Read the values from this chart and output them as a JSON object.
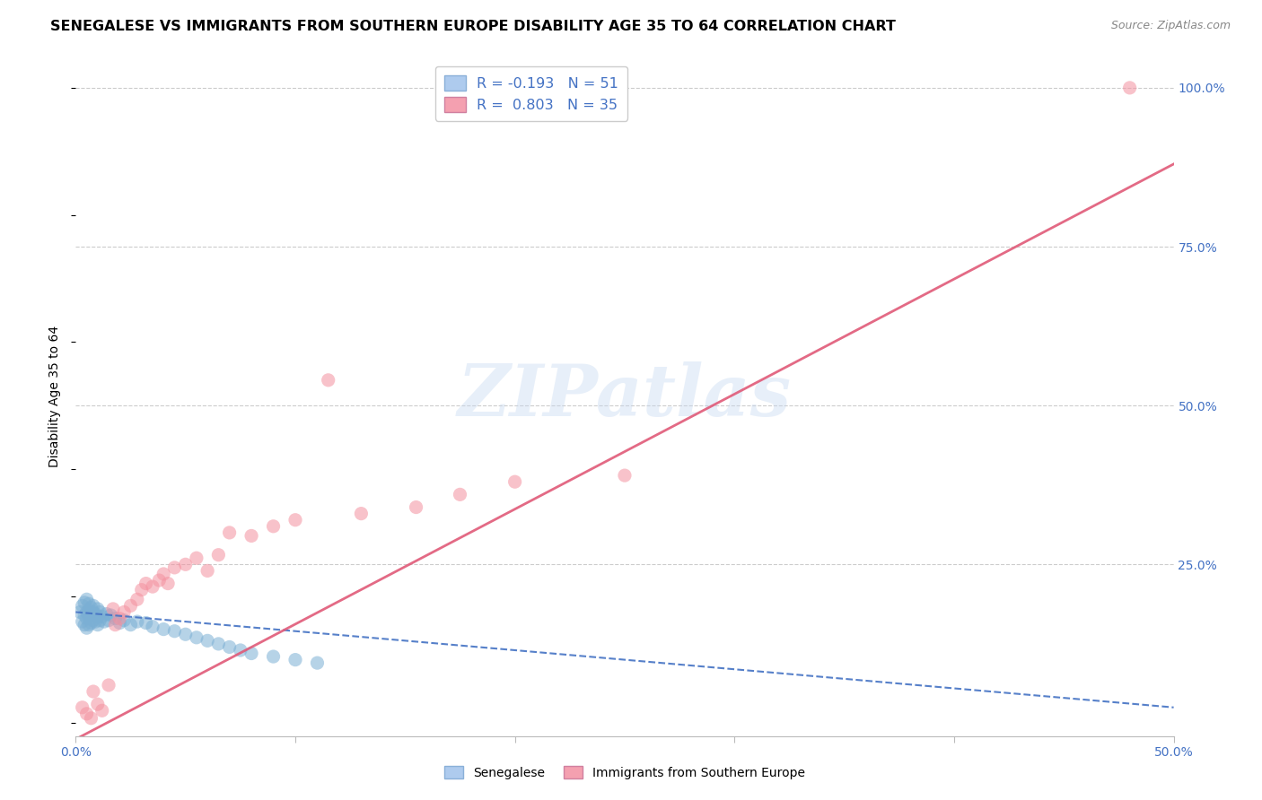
{
  "title": "SENEGALESE VS IMMIGRANTS FROM SOUTHERN EUROPE DISABILITY AGE 35 TO 64 CORRELATION CHART",
  "source": "Source: ZipAtlas.com",
  "ylabel": "Disability Age 35 to 64",
  "x_min": 0.0,
  "x_max": 0.5,
  "y_min": -0.02,
  "y_max": 1.05,
  "watermark": "ZIPatlas",
  "blue_color": "#7bafd4",
  "pink_color": "#f4919f",
  "blue_line_color": "#4472c4",
  "pink_line_color": "#e05a78",
  "blue_x": [
    0.002,
    0.003,
    0.003,
    0.004,
    0.004,
    0.004,
    0.005,
    0.005,
    0.005,
    0.005,
    0.006,
    0.006,
    0.006,
    0.006,
    0.007,
    0.007,
    0.007,
    0.008,
    0.008,
    0.008,
    0.009,
    0.009,
    0.01,
    0.01,
    0.01,
    0.011,
    0.011,
    0.012,
    0.013,
    0.014,
    0.015,
    0.016,
    0.018,
    0.02,
    0.022,
    0.025,
    0.028,
    0.032,
    0.035,
    0.04,
    0.045,
    0.05,
    0.055,
    0.06,
    0.065,
    0.07,
    0.075,
    0.08,
    0.09,
    0.1,
    0.11
  ],
  "blue_y": [
    0.175,
    0.16,
    0.185,
    0.155,
    0.17,
    0.19,
    0.15,
    0.165,
    0.175,
    0.195,
    0.155,
    0.168,
    0.178,
    0.188,
    0.158,
    0.17,
    0.182,
    0.162,
    0.175,
    0.185,
    0.16,
    0.172,
    0.155,
    0.168,
    0.18,
    0.162,
    0.175,
    0.168,
    0.16,
    0.172,
    0.162,
    0.17,
    0.165,
    0.158,
    0.162,
    0.155,
    0.16,
    0.158,
    0.152,
    0.148,
    0.145,
    0.14,
    0.135,
    0.13,
    0.125,
    0.12,
    0.115,
    0.11,
    0.105,
    0.1,
    0.095
  ],
  "pink_x": [
    0.003,
    0.005,
    0.007,
    0.008,
    0.01,
    0.012,
    0.015,
    0.017,
    0.018,
    0.02,
    0.022,
    0.025,
    0.028,
    0.03,
    0.032,
    0.035,
    0.038,
    0.04,
    0.042,
    0.045,
    0.05,
    0.055,
    0.06,
    0.065,
    0.07,
    0.08,
    0.09,
    0.1,
    0.115,
    0.13,
    0.155,
    0.175,
    0.2,
    0.25,
    0.48
  ],
  "pink_y": [
    0.025,
    0.015,
    0.008,
    0.05,
    0.03,
    0.02,
    0.06,
    0.18,
    0.155,
    0.165,
    0.175,
    0.185,
    0.195,
    0.21,
    0.22,
    0.215,
    0.225,
    0.235,
    0.22,
    0.245,
    0.25,
    0.26,
    0.24,
    0.265,
    0.3,
    0.295,
    0.31,
    0.32,
    0.54,
    0.33,
    0.34,
    0.36,
    0.38,
    0.39,
    1.0
  ],
  "blue_trend_x": [
    0.0,
    0.5
  ],
  "blue_trend_y": [
    0.175,
    0.025
  ],
  "pink_trend_x": [
    0.0,
    0.5
  ],
  "pink_trend_y": [
    -0.025,
    0.88
  ],
  "background_color": "#ffffff",
  "grid_color": "#cccccc",
  "title_fontsize": 11.5,
  "axis_label_fontsize": 10,
  "tick_label_fontsize": 10,
  "tick_color": "#4472c4",
  "source_fontsize": 9,
  "legend_r1": "R = -0.193",
  "legend_n1": "N = 51",
  "legend_r2": "R =  0.803",
  "legend_n2": "N = 35",
  "legend_color1": "#aecbee",
  "legend_color2": "#f4a0b0",
  "bottom_legend_senegalese": "Senegalese",
  "bottom_legend_immigrants": "Immigrants from Southern Europe"
}
